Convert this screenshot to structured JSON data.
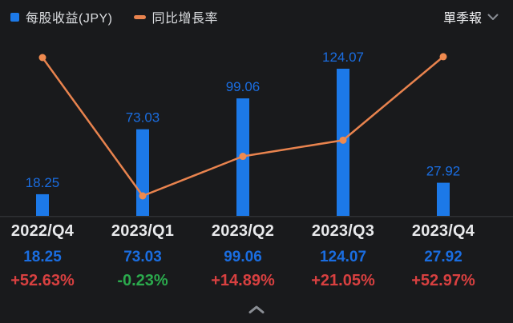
{
  "header": {
    "legend": [
      {
        "label": "每股收益(JPY)",
        "icon": "legend-bar-swatch",
        "swatch": "square",
        "color": "#1C79E8"
      },
      {
        "label": "同比增長率",
        "icon": "legend-line-swatch",
        "swatch": "dash",
        "color": "#E8834E"
      }
    ],
    "period_selector": {
      "label": "單季報",
      "icon": "chevron-down-icon"
    }
  },
  "chart_data": {
    "type": "combo",
    "categories": [
      "2022/Q4",
      "2023/Q1",
      "2023/Q2",
      "2023/Q3",
      "2023/Q4"
    ],
    "series": [
      {
        "name": "每股收益(JPY)",
        "type": "bar",
        "values": [
          18.25,
          73.03,
          99.06,
          124.07,
          27.92
        ],
        "labels": [
          "18.25",
          "73.03",
          "99.06",
          "124.07",
          "27.92"
        ],
        "color": "#1C79E8",
        "label_color": "#1A6DE0"
      },
      {
        "name": "同比增長率",
        "type": "line",
        "unit": "%",
        "values": [
          52.63,
          -0.23,
          14.89,
          21.05,
          52.97
        ],
        "color": "#E8834E"
      }
    ],
    "legend_position": "top-left",
    "grid": false,
    "value_labels_shown": "bar-series-only"
  },
  "table": {
    "columns": [
      {
        "period": "2022/Q4",
        "eps": "18.25",
        "growth": "+52.63%",
        "direction": "up"
      },
      {
        "period": "2023/Q1",
        "eps": "73.03",
        "growth": "-0.23%",
        "direction": "down"
      },
      {
        "period": "2023/Q2",
        "eps": "99.06",
        "growth": "+14.89%",
        "direction": "up"
      },
      {
        "period": "2023/Q3",
        "eps": "124.07",
        "growth": "+21.05%",
        "direction": "up"
      },
      {
        "period": "2023/Q4",
        "eps": "27.92",
        "growth": "+52.97%",
        "direction": "up"
      }
    ]
  },
  "colors": {
    "background": "#191A1C",
    "bar": "#1C79E8",
    "bar_label": "#1A6DE0",
    "line": "#E8834E",
    "point": "#EF8A4F",
    "up": "#D84040",
    "down": "#2BAA4D",
    "period_text": "#E9EAEC",
    "axis_line": "#2E3034",
    "collapse_icon": "#8A8E94"
  },
  "footer": {
    "collapse_icon": "chevron-up-icon"
  }
}
